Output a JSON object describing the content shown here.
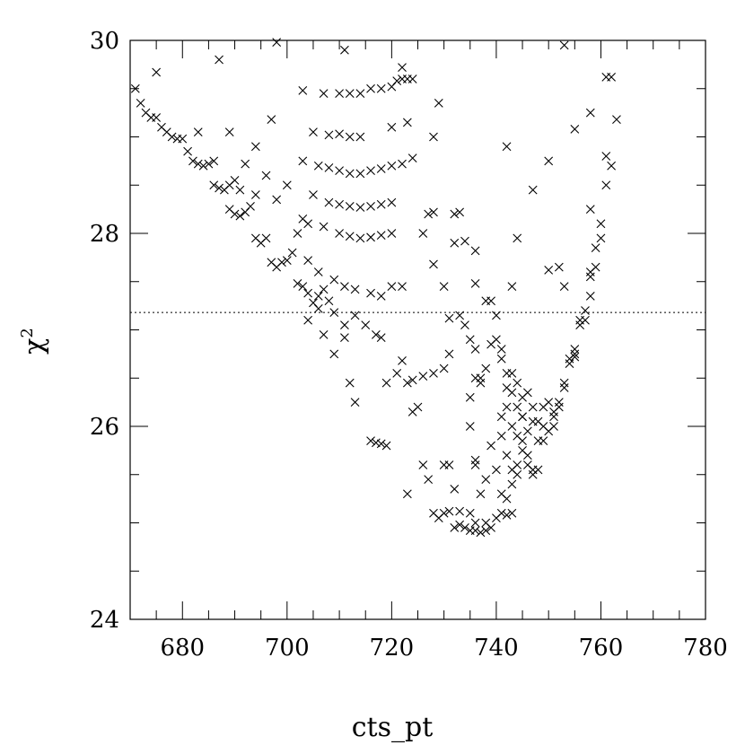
{
  "chart_data": {
    "type": "scatter",
    "title": "",
    "xlabel": "cts_pt",
    "ylabel_base": "χ",
    "ylabel_exponent": "2",
    "xlim": [
      670,
      780
    ],
    "ylim": [
      24,
      30
    ],
    "x_ticks": [
      680,
      700,
      720,
      740,
      760,
      780
    ],
    "x_tick_labels": [
      "680",
      "700",
      "720",
      "740",
      "760",
      "780"
    ],
    "y_ticks": [
      24,
      26,
      28,
      30
    ],
    "y_tick_labels": [
      "24",
      "26",
      "28",
      "30"
    ],
    "y_minor_step": 0.5,
    "x_minor_step": 5,
    "reference_line_y": 27.18,
    "marker": "x",
    "grid": false,
    "series": [
      {
        "points": [
          [
            671,
            29.5
          ],
          [
            672,
            29.35
          ],
          [
            673,
            29.25
          ],
          [
            674,
            29.2
          ],
          [
            675,
            29.2
          ],
          [
            676,
            29.1
          ],
          [
            677,
            29.05
          ],
          [
            678,
            29.0
          ],
          [
            679,
            28.98
          ],
          [
            680,
            28.98
          ],
          [
            681,
            28.85
          ],
          [
            682,
            28.75
          ],
          [
            683,
            28.72
          ],
          [
            684,
            28.7
          ],
          [
            685,
            28.72
          ],
          [
            686,
            28.5
          ],
          [
            687,
            28.47
          ],
          [
            688,
            28.45
          ],
          [
            689,
            28.5
          ],
          [
            690,
            28.55
          ],
          [
            691,
            28.45
          ],
          [
            675,
            29.67
          ],
          [
            683,
            29.05
          ],
          [
            686,
            28.75
          ],
          [
            687,
            29.8
          ],
          [
            689,
            29.05
          ],
          [
            689,
            28.25
          ],
          [
            690,
            28.2
          ],
          [
            691,
            28.18
          ],
          [
            692,
            28.22
          ],
          [
            693,
            28.28
          ],
          [
            694,
            27.95
          ],
          [
            695,
            27.9
          ],
          [
            696,
            27.95
          ],
          [
            697,
            27.7
          ],
          [
            698,
            27.65
          ],
          [
            699,
            27.7
          ],
          [
            700,
            27.72
          ],
          [
            701,
            27.8
          ],
          [
            702,
            27.48
          ],
          [
            703,
            27.45
          ],
          [
            704,
            27.38
          ],
          [
            705,
            27.28
          ],
          [
            706,
            27.35
          ],
          [
            707,
            27.42
          ],
          [
            692,
            28.72
          ],
          [
            694,
            28.9
          ],
          [
            697,
            29.18
          ],
          [
            698,
            29.98
          ],
          [
            694,
            28.4
          ],
          [
            696,
            28.6
          ],
          [
            698,
            28.35
          ],
          [
            700,
            28.5
          ],
          [
            702,
            28.0
          ],
          [
            704,
            28.1
          ],
          [
            703,
            29.48
          ],
          [
            707,
            29.45
          ],
          [
            710,
            29.45
          ],
          [
            712,
            29.45
          ],
          [
            714,
            29.45
          ],
          [
            716,
            29.5
          ],
          [
            718,
            29.5
          ],
          [
            720,
            29.52
          ],
          [
            721,
            29.58
          ],
          [
            722,
            29.6
          ],
          [
            723,
            29.6
          ],
          [
            724,
            29.6
          ],
          [
            722,
            29.72
          ],
          [
            711,
            29.9
          ],
          [
            705,
            29.05
          ],
          [
            708,
            29.02
          ],
          [
            710,
            29.03
          ],
          [
            712,
            29.0
          ],
          [
            714,
            29.0
          ],
          [
            720,
            29.1
          ],
          [
            723,
            29.15
          ],
          [
            703,
            28.75
          ],
          [
            706,
            28.7
          ],
          [
            708,
            28.68
          ],
          [
            710,
            28.65
          ],
          [
            712,
            28.62
          ],
          [
            714,
            28.62
          ],
          [
            716,
            28.65
          ],
          [
            718,
            28.67
          ],
          [
            720,
            28.7
          ],
          [
            722,
            28.72
          ],
          [
            724,
            28.78
          ],
          [
            705,
            28.4
          ],
          [
            708,
            28.32
          ],
          [
            710,
            28.3
          ],
          [
            712,
            28.28
          ],
          [
            714,
            28.27
          ],
          [
            716,
            28.28
          ],
          [
            718,
            28.3
          ],
          [
            720,
            28.32
          ],
          [
            703,
            28.15
          ],
          [
            707,
            28.07
          ],
          [
            710,
            28.0
          ],
          [
            712,
            27.97
          ],
          [
            714,
            27.95
          ],
          [
            716,
            27.96
          ],
          [
            718,
            27.98
          ],
          [
            720,
            28.0
          ],
          [
            726,
            28.0
          ],
          [
            727,
            28.2
          ],
          [
            728,
            28.22
          ],
          [
            704,
            27.72
          ],
          [
            706,
            27.6
          ],
          [
            709,
            27.52
          ],
          [
            711,
            27.45
          ],
          [
            713,
            27.42
          ],
          [
            716,
            27.38
          ],
          [
            718,
            27.35
          ],
          [
            720,
            27.45
          ],
          [
            722,
            27.45
          ],
          [
            704,
            27.1
          ],
          [
            706,
            27.22
          ],
          [
            708,
            27.3
          ],
          [
            709,
            27.18
          ],
          [
            711,
            27.05
          ],
          [
            713,
            27.15
          ],
          [
            715,
            27.05
          ],
          [
            717,
            26.95
          ],
          [
            718,
            26.92
          ],
          [
            707,
            26.95
          ],
          [
            709,
            26.75
          ],
          [
            711,
            26.92
          ],
          [
            712,
            26.45
          ],
          [
            713,
            26.25
          ],
          [
            716,
            25.85
          ],
          [
            717,
            25.83
          ],
          [
            718,
            25.82
          ],
          [
            719,
            25.8
          ],
          [
            719,
            26.45
          ],
          [
            721,
            26.55
          ],
          [
            722,
            26.68
          ],
          [
            723,
            26.45
          ],
          [
            724,
            26.48
          ],
          [
            726,
            26.52
          ],
          [
            728,
            26.55
          ],
          [
            730,
            26.6
          ],
          [
            731,
            26.75
          ],
          [
            724,
            26.15
          ],
          [
            725,
            26.2
          ],
          [
            726,
            25.6
          ],
          [
            727,
            25.45
          ],
          [
            723,
            25.3
          ],
          [
            728,
            27.68
          ],
          [
            730,
            27.45
          ],
          [
            731,
            27.12
          ],
          [
            733,
            27.15
          ],
          [
            734,
            27.05
          ],
          [
            735,
            26.9
          ],
          [
            736,
            26.8
          ],
          [
            737,
            26.5
          ],
          [
            729,
            29.35
          ],
          [
            728,
            29.0
          ],
          [
            732,
            28.2
          ],
          [
            733,
            28.22
          ],
          [
            732,
            27.9
          ],
          [
            734,
            27.92
          ],
          [
            736,
            27.82
          ],
          [
            736,
            27.48
          ],
          [
            730,
            25.6
          ],
          [
            731,
            25.6
          ],
          [
            732,
            25.35
          ],
          [
            728,
            25.1
          ],
          [
            729,
            25.05
          ],
          [
            730,
            25.1
          ],
          [
            731,
            25.12
          ],
          [
            733,
            25.12
          ],
          [
            732,
            24.95
          ],
          [
            733,
            24.98
          ],
          [
            734,
            24.95
          ],
          [
            735,
            24.92
          ],
          [
            736,
            24.92
          ],
          [
            737,
            24.9
          ],
          [
            738,
            24.92
          ],
          [
            739,
            24.95
          ],
          [
            736,
            25.0
          ],
          [
            738,
            25.0
          ],
          [
            740,
            25.05
          ],
          [
            741,
            25.1
          ],
          [
            742,
            25.08
          ],
          [
            743,
            25.1
          ],
          [
            735,
            25.1
          ],
          [
            735,
            26.0
          ],
          [
            736,
            25.65
          ],
          [
            736,
            25.6
          ],
          [
            737,
            25.3
          ],
          [
            738,
            25.45
          ],
          [
            739,
            25.8
          ],
          [
            740,
            25.55
          ],
          [
            741,
            25.9
          ],
          [
            735,
            26.3
          ],
          [
            736,
            26.5
          ],
          [
            737,
            26.45
          ],
          [
            738,
            26.6
          ],
          [
            739,
            26.85
          ],
          [
            740,
            26.9
          ],
          [
            741,
            26.7
          ],
          [
            738,
            27.3
          ],
          [
            739,
            27.3
          ],
          [
            740,
            27.15
          ],
          [
            741,
            26.8
          ],
          [
            742,
            26.55
          ],
          [
            743,
            26.55
          ],
          [
            744,
            26.45
          ],
          [
            745,
            26.3
          ],
          [
            742,
            26.2
          ],
          [
            743,
            26.0
          ],
          [
            744,
            25.9
          ],
          [
            745,
            26.1
          ],
          [
            746,
            25.95
          ],
          [
            747,
            26.2
          ],
          [
            748,
            26.05
          ],
          [
            749,
            26.2
          ],
          [
            750,
            26.25
          ],
          [
            751,
            26.1
          ],
          [
            752,
            26.2
          ],
          [
            753,
            26.4
          ],
          [
            742,
            25.7
          ],
          [
            743,
            25.55
          ],
          [
            744,
            25.5
          ],
          [
            745,
            25.85
          ],
          [
            746,
            25.6
          ],
          [
            747,
            25.5
          ],
          [
            748,
            25.85
          ],
          [
            749,
            25.85
          ],
          [
            750,
            25.95
          ],
          [
            751,
            26.0
          ],
          [
            741,
            25.3
          ],
          [
            742,
            25.25
          ],
          [
            743,
            25.4
          ],
          [
            744,
            25.6
          ],
          [
            745,
            25.75
          ],
          [
            746,
            25.7
          ],
          [
            747,
            25.55
          ],
          [
            748,
            25.55
          ],
          [
            741,
            26.1
          ],
          [
            742,
            26.4
          ],
          [
            743,
            26.35
          ],
          [
            744,
            26.2
          ],
          [
            745,
            26.1
          ],
          [
            746,
            26.35
          ],
          [
            747,
            26.05
          ],
          [
            749,
            26.0
          ],
          [
            751,
            26.15
          ],
          [
            752,
            26.25
          ],
          [
            753,
            26.45
          ],
          [
            754,
            26.65
          ],
          [
            755,
            26.75
          ],
          [
            742,
            28.9
          ],
          [
            743,
            27.45
          ],
          [
            744,
            27.95
          ],
          [
            747,
            28.45
          ],
          [
            750,
            28.75
          ],
          [
            750,
            27.62
          ],
          [
            752,
            27.65
          ],
          [
            753,
            27.45
          ],
          [
            753,
            29.95
          ],
          [
            754,
            26.7
          ],
          [
            755,
            26.8
          ],
          [
            755,
            26.72
          ],
          [
            756,
            27.1
          ],
          [
            756,
            27.05
          ],
          [
            757,
            27.1
          ],
          [
            757,
            27.2
          ],
          [
            758,
            27.35
          ],
          [
            758,
            27.6
          ],
          [
            759,
            27.65
          ],
          [
            759,
            27.85
          ],
          [
            760,
            27.95
          ],
          [
            760,
            28.1
          ],
          [
            761,
            28.5
          ],
          [
            761,
            28.8
          ],
          [
            762,
            28.7
          ],
          [
            761,
            29.62
          ],
          [
            762,
            29.62
          ],
          [
            763,
            29.18
          ],
          [
            758,
            29.25
          ],
          [
            758,
            28.25
          ],
          [
            755,
            29.08
          ],
          [
            758,
            27.55
          ]
        ]
      }
    ]
  }
}
